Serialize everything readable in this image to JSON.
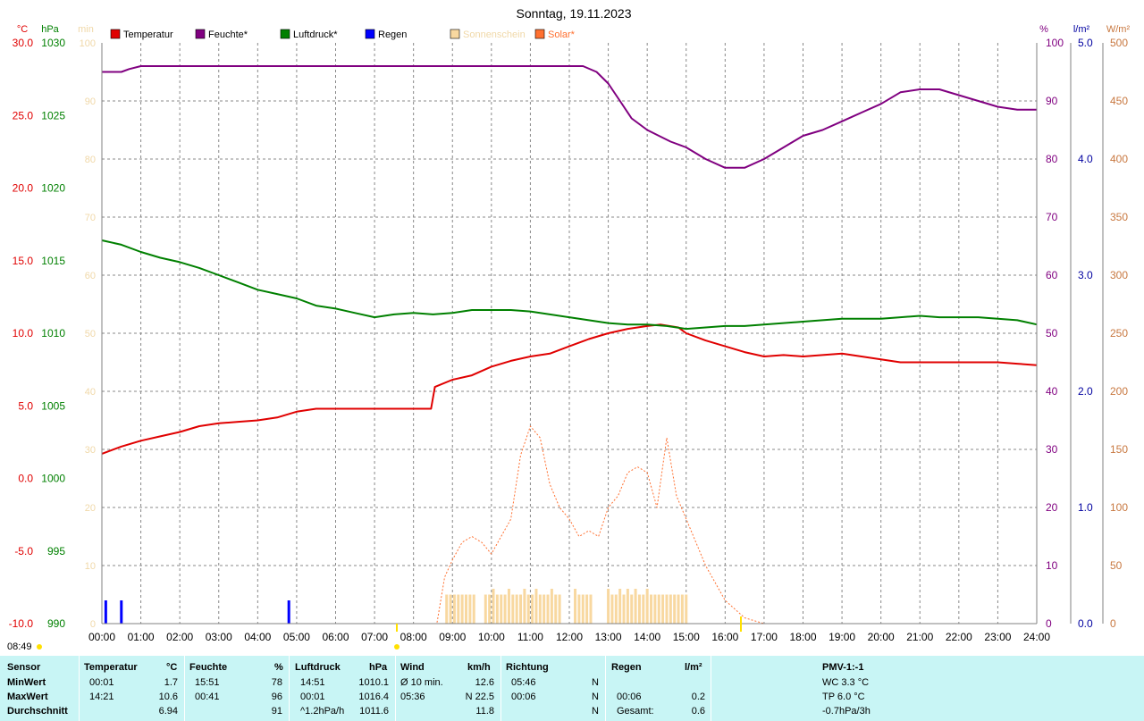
{
  "chart_data": {
    "type": "line",
    "title": "Sonntag, 19.11.2023",
    "x_ticks": [
      "00:00",
      "01:00",
      "02:00",
      "03:00",
      "04:00",
      "05:00",
      "06:00",
      "07:00",
      "08:00",
      "09:00",
      "10:00",
      "11:00",
      "12:00",
      "13:00",
      "14:00",
      "15:00",
      "16:00",
      "17:00",
      "18:00",
      "19:00",
      "20:00",
      "21:00",
      "22:00",
      "23:00",
      "24:00"
    ],
    "xlim": [
      0,
      24
    ],
    "axes": {
      "temp": {
        "unit": "°C",
        "range": [
          -10,
          30
        ],
        "ticks": [
          "30.0",
          "25.0",
          "20.0",
          "15.0",
          "10.0",
          "5.0",
          "0.0",
          "-5.0",
          "-10.0"
        ]
      },
      "pressure": {
        "unit": "hPa",
        "range": [
          990,
          1030
        ],
        "ticks": [
          "1030",
          "1025",
          "1020",
          "1015",
          "1010",
          "1005",
          "1000",
          "995",
          "990"
        ]
      },
      "sunshine": {
        "unit": "min",
        "range": [
          0,
          100
        ],
        "ticks": [
          "100",
          "90",
          "80",
          "70",
          "60",
          "50",
          "40",
          "30",
          "20",
          "10",
          "0"
        ]
      },
      "humidity": {
        "unit": "%",
        "range": [
          0,
          100
        ],
        "ticks": [
          "100",
          "90",
          "80",
          "70",
          "60",
          "50",
          "40",
          "30",
          "20",
          "10",
          "0"
        ]
      },
      "rain": {
        "unit": "l/m²",
        "range": [
          0,
          5
        ],
        "ticks": [
          "5.0",
          "4.0",
          "3.0",
          "2.0",
          "1.0",
          "0.0"
        ]
      },
      "solar": {
        "unit": "W/m²",
        "range": [
          0,
          500
        ],
        "ticks": [
          "500",
          "450",
          "400",
          "350",
          "300",
          "250",
          "200",
          "150",
          "100",
          "50",
          "0"
        ]
      }
    },
    "legend": [
      {
        "label": "Temperatur",
        "color": "#e00000"
      },
      {
        "label": "Feuchte*",
        "color": "#800080"
      },
      {
        "label": "Luftdruck*",
        "color": "#008000"
      },
      {
        "label": "Regen",
        "color": "#0000ff"
      },
      {
        "label": "Sonnenschein",
        "color": "#f8d8a0"
      },
      {
        "label": "Solar*",
        "color": "#ff7030"
      }
    ],
    "series": [
      {
        "name": "Temperatur",
        "axis": "temp",
        "color": "#e00000",
        "x": [
          0,
          0.5,
          1,
          1.5,
          2,
          2.5,
          3,
          3.5,
          4,
          4.5,
          5,
          5.5,
          6,
          6.5,
          7,
          7.5,
          8,
          8.45,
          8.55,
          9,
          9.5,
          10,
          10.5,
          11,
          11.5,
          12,
          12.5,
          13,
          13.5,
          14,
          14.35,
          14.8,
          15,
          15.5,
          16,
          16.5,
          17,
          17.5,
          18,
          18.5,
          19,
          19.5,
          20,
          20.5,
          21,
          21.5,
          22,
          22.5,
          23,
          23.5,
          24
        ],
        "y": [
          1.7,
          2.2,
          2.6,
          2.9,
          3.2,
          3.6,
          3.8,
          3.9,
          4.0,
          4.2,
          4.6,
          4.8,
          4.8,
          4.8,
          4.8,
          4.8,
          4.8,
          4.8,
          6.3,
          6.8,
          7.1,
          7.7,
          8.1,
          8.4,
          8.6,
          9.1,
          9.6,
          10.0,
          10.3,
          10.5,
          10.6,
          10.4,
          10.0,
          9.5,
          9.1,
          8.7,
          8.4,
          8.5,
          8.4,
          8.5,
          8.6,
          8.4,
          8.2,
          8.0,
          8.0,
          8.0,
          8.0,
          8.0,
          8.0,
          7.9,
          7.8
        ]
      },
      {
        "name": "Feuchte*",
        "axis": "humidity",
        "color": "#800080",
        "x": [
          0,
          0.5,
          0.7,
          1,
          1.5,
          2,
          4,
          6,
          8,
          10,
          12,
          12.35,
          12.7,
          13,
          13.3,
          13.6,
          14,
          14.3,
          14.6,
          15,
          15.5,
          16,
          16.5,
          17,
          17.5,
          18,
          18.5,
          19,
          19.5,
          20,
          20.5,
          21,
          21.5,
          22,
          22.5,
          23,
          23.5,
          24
        ],
        "y": [
          95,
          95,
          95.5,
          96,
          96,
          96,
          96,
          96,
          96,
          96,
          96,
          96,
          95,
          93,
          90,
          87,
          85,
          84,
          83,
          82,
          80,
          78.5,
          78.5,
          80,
          82,
          84,
          85,
          86.5,
          88,
          89.5,
          91.5,
          92,
          92,
          91,
          90,
          89,
          88.5,
          88.5
        ]
      },
      {
        "name": "Luftdruck*",
        "axis": "pressure",
        "color": "#008000",
        "x": [
          0,
          0.5,
          1,
          1.5,
          2,
          2.5,
          3,
          3.5,
          4,
          4.5,
          5,
          5.5,
          6,
          6.5,
          7,
          7.5,
          8,
          8.5,
          9,
          9.5,
          10,
          10.5,
          11,
          11.5,
          12,
          12.5,
          13,
          13.5,
          14,
          14.5,
          15,
          15.5,
          16,
          16.5,
          17,
          17.5,
          18,
          18.5,
          19,
          19.5,
          20,
          20.5,
          21,
          21.5,
          22,
          22.5,
          23,
          23.5,
          24
        ],
        "y": [
          1016.4,
          1016.1,
          1015.6,
          1015.2,
          1014.9,
          1014.5,
          1014.0,
          1013.5,
          1013.0,
          1012.7,
          1012.4,
          1011.9,
          1011.7,
          1011.4,
          1011.1,
          1011.3,
          1011.4,
          1011.3,
          1011.4,
          1011.6,
          1011.6,
          1011.6,
          1011.5,
          1011.3,
          1011.1,
          1010.9,
          1010.7,
          1010.6,
          1010.6,
          1010.5,
          1010.3,
          1010.4,
          1010.5,
          1010.5,
          1010.6,
          1010.7,
          1010.8,
          1010.9,
          1011.0,
          1011.0,
          1011.0,
          1011.1,
          1011.2,
          1011.1,
          1011.1,
          1011.1,
          1011.0,
          1010.9,
          1010.6
        ]
      },
      {
        "name": "Solar*",
        "axis": "solar",
        "color": "#ff7030",
        "x": [
          0,
          8.6,
          8.8,
          9,
          9.25,
          9.5,
          9.75,
          10,
          10.25,
          10.5,
          10.75,
          11,
          11.25,
          11.5,
          11.75,
          12,
          12.25,
          12.5,
          12.75,
          13,
          13.25,
          13.5,
          13.75,
          14,
          14.25,
          14.5,
          14.75,
          15,
          15.5,
          16,
          16.5,
          17,
          24
        ],
        "y": [
          0,
          0,
          40,
          55,
          70,
          75,
          70,
          60,
          75,
          90,
          145,
          170,
          160,
          120,
          100,
          90,
          75,
          80,
          75,
          100,
          110,
          130,
          135,
          130,
          100,
          160,
          110,
          90,
          50,
          20,
          5,
          0,
          0
        ]
      },
      {
        "name": "Sonnenschein",
        "axis": "sunshine",
        "color": "#f8d8a0",
        "type": "bar",
        "x": [
          8.85,
          8.95,
          9.05,
          9.15,
          9.25,
          9.35,
          9.45,
          9.55,
          9.85,
          9.95,
          10.05,
          10.15,
          10.25,
          10.35,
          10.45,
          10.55,
          10.65,
          10.75,
          10.85,
          10.95,
          11.05,
          11.15,
          11.25,
          11.35,
          11.45,
          11.55,
          11.65,
          11.75,
          12.15,
          12.25,
          12.35,
          12.45,
          12.55,
          13.0,
          13.1,
          13.2,
          13.3,
          13.4,
          13.5,
          13.6,
          13.7,
          13.8,
          13.9,
          14.0,
          14.1,
          14.2,
          14.3,
          14.4,
          14.5,
          14.6,
          14.7,
          14.8,
          14.9,
          15.0
        ],
        "y": [
          5,
          5,
          5,
          5,
          5,
          5,
          5,
          5,
          5,
          5,
          6,
          5,
          5,
          5,
          6,
          5,
          5,
          5,
          6,
          5,
          5,
          6,
          5,
          5,
          5,
          6,
          5,
          5,
          6,
          5,
          5,
          5,
          5,
          6,
          5,
          5,
          6,
          5,
          6,
          5,
          6,
          5,
          5,
          6,
          5,
          5,
          5,
          5,
          5,
          5,
          5,
          5,
          5,
          5
        ]
      },
      {
        "name": "Regen",
        "axis": "rain",
        "color": "#0000ff",
        "type": "bar",
        "x": [
          0.1,
          0.5,
          4.8
        ],
        "y": [
          0.2,
          0.2,
          0.2
        ]
      }
    ],
    "markers": [
      "08:49"
    ],
    "grid": true
  },
  "table": {
    "headers": [
      "Sensor",
      "Temperatur",
      "°C",
      "Feuchte",
      "%",
      "Luftdruck",
      "hPa",
      "Wind",
      "km/h",
      "Richtung",
      "Regen",
      "l/m²",
      "PMV-1:-1"
    ],
    "rows": [
      {
        "label": "MinWert",
        "t_time": "00:01",
        "t_val": "1.7",
        "h_time": "15:51",
        "h_val": "78",
        "p_time": "14:51",
        "p_val": "1010.1",
        "w_label": "Ø 10 min.",
        "w_val": "12.6",
        "d_time": "05:46",
        "d_val": "N",
        "r_time": "",
        "r_val": "",
        "pmv": "WC 3.3 °C"
      },
      {
        "label": "MaxWert",
        "t_time": "14:21",
        "t_val": "10.6",
        "h_time": "00:41",
        "h_val": "96",
        "p_time": "00:01",
        "p_val": "1016.4",
        "w_label": "05:36",
        "w_val": "N 22.5",
        "d_time": "00:06",
        "d_val": "N",
        "r_time": "00:06",
        "r_val": "0.2",
        "pmv": "TP 6.0 °C"
      },
      {
        "label": "Durchschnitt",
        "t_time": "",
        "t_val": "6.94",
        "h_time": "",
        "h_val": "91",
        "p_time": "^1.2hPa/h",
        "p_val": "1011.6",
        "w_label": "",
        "w_val": "11.8",
        "d_time": "",
        "d_val": "N",
        "r_time": "Gesamt:",
        "r_val": "0.6",
        "pmv": "-0.7hPa/3h"
      }
    ]
  }
}
